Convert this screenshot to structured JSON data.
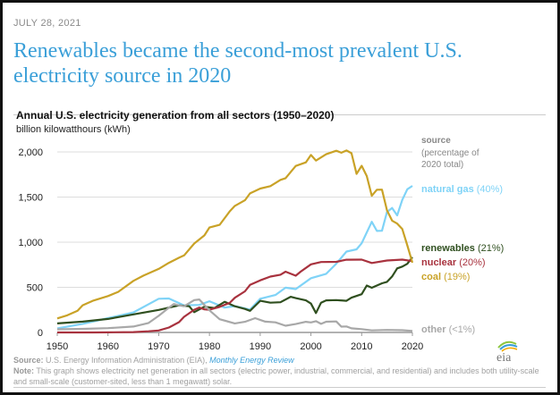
{
  "date": "JULY 28, 2021",
  "headline": "Renewables became the second-most prevalent U.S. electricity source in 2020",
  "source_label": "Source:",
  "source_text": "U.S. Energy Information Administration (EIA),",
  "source_link": "Monthly Energy Review",
  "note_label": "Note:",
  "note_text": "This graph shows electricity net generation in all sectors (electric power, industrial, commercial, and residential) and includes both utility-scale and small-scale (customer-sited, less than 1 megawatt) solar.",
  "logo_text": "eia",
  "chart_data": {
    "type": "line",
    "title": "Annual U.S. electricity generation from all sectors (1950–2020)",
    "ylabel": "billion kilowatthours (kWh)",
    "xlim": [
      1950,
      2020
    ],
    "ylim": [
      0,
      2000
    ],
    "x_ticks": [
      "1950",
      "1960",
      "1970",
      "1980",
      "1990",
      "2000",
      "2010",
      "2020"
    ],
    "y_ticks": [
      "0",
      "500",
      "1,000",
      "1,500",
      "2,000"
    ],
    "grid": true,
    "legend_title": "source",
    "legend_subtitle": "(percentage of 2020 total)",
    "legend_placement": "right",
    "series": [
      {
        "name": "natural gas",
        "share": "(40%)",
        "color": "#7fd3f7",
        "points": [
          [
            1950,
            45
          ],
          [
            1955,
            95
          ],
          [
            1960,
            158
          ],
          [
            1965,
            222
          ],
          [
            1970,
            373
          ],
          [
            1972,
            376
          ],
          [
            1975,
            300
          ],
          [
            1978,
            305
          ],
          [
            1980,
            346
          ],
          [
            1983,
            275
          ],
          [
            1985,
            292
          ],
          [
            1988,
            253
          ],
          [
            1990,
            373
          ],
          [
            1993,
            415
          ],
          [
            1995,
            496
          ],
          [
            1997,
            480
          ],
          [
            2000,
            601
          ],
          [
            2003,
            650
          ],
          [
            2005,
            761
          ],
          [
            2007,
            896
          ],
          [
            2009,
            921
          ],
          [
            2010,
            988
          ],
          [
            2012,
            1226
          ],
          [
            2013,
            1125
          ],
          [
            2014,
            1127
          ],
          [
            2015,
            1335
          ],
          [
            2016,
            1379
          ],
          [
            2017,
            1297
          ],
          [
            2018,
            1469
          ],
          [
            2019,
            1586
          ],
          [
            2020,
            1624
          ]
        ]
      },
      {
        "name": "renewables",
        "share": "(21%)",
        "color": "#2f4f1f",
        "points": [
          [
            1950,
            100
          ],
          [
            1955,
            120
          ],
          [
            1960,
            150
          ],
          [
            1965,
            200
          ],
          [
            1970,
            250
          ],
          [
            1974,
            300
          ],
          [
            1976,
            290
          ],
          [
            1977,
            225
          ],
          [
            1979,
            285
          ],
          [
            1981,
            270
          ],
          [
            1983,
            340
          ],
          [
            1985,
            290
          ],
          [
            1987,
            260
          ],
          [
            1988,
            240
          ],
          [
            1990,
            350
          ],
          [
            1992,
            330
          ],
          [
            1994,
            335
          ],
          [
            1996,
            395
          ],
          [
            1997,
            380
          ],
          [
            1999,
            355
          ],
          [
            2000,
            320
          ],
          [
            2001,
            215
          ],
          [
            2002,
            330
          ],
          [
            2003,
            355
          ],
          [
            2005,
            358
          ],
          [
            2007,
            350
          ],
          [
            2008,
            385
          ],
          [
            2010,
            424
          ],
          [
            2011,
            520
          ],
          [
            2012,
            495
          ],
          [
            2014,
            545
          ],
          [
            2015,
            560
          ],
          [
            2016,
            620
          ],
          [
            2017,
            710
          ],
          [
            2018,
            730
          ],
          [
            2019,
            760
          ],
          [
            2020,
            834
          ]
        ]
      },
      {
        "name": "nuclear",
        "share": "(20%)",
        "color": "#a8323e",
        "points": [
          [
            1950,
            0
          ],
          [
            1957,
            0
          ],
          [
            1960,
            1
          ],
          [
            1965,
            4
          ],
          [
            1968,
            13
          ],
          [
            1970,
            22
          ],
          [
            1972,
            54
          ],
          [
            1974,
            114
          ],
          [
            1975,
            173
          ],
          [
            1977,
            251
          ],
          [
            1978,
            276
          ],
          [
            1979,
            255
          ],
          [
            1980,
            251
          ],
          [
            1982,
            283
          ],
          [
            1984,
            328
          ],
          [
            1985,
            384
          ],
          [
            1987,
            455
          ],
          [
            1988,
            527
          ],
          [
            1990,
            577
          ],
          [
            1992,
            619
          ],
          [
            1994,
            640
          ],
          [
            1995,
            673
          ],
          [
            1997,
            629
          ],
          [
            1998,
            674
          ],
          [
            2000,
            754
          ],
          [
            2002,
            780
          ],
          [
            2005,
            782
          ],
          [
            2007,
            806
          ],
          [
            2010,
            807
          ],
          [
            2012,
            769
          ],
          [
            2015,
            797
          ],
          [
            2018,
            807
          ],
          [
            2020,
            790
          ]
        ]
      },
      {
        "name": "coal",
        "share": "(19%)",
        "color": "#c9a227",
        "points": [
          [
            1950,
            155
          ],
          [
            1952,
            190
          ],
          [
            1954,
            240
          ],
          [
            1955,
            301
          ],
          [
            1957,
            350
          ],
          [
            1960,
            403
          ],
          [
            1962,
            450
          ],
          [
            1965,
            571
          ],
          [
            1967,
            630
          ],
          [
            1970,
            704
          ],
          [
            1972,
            771
          ],
          [
            1974,
            828
          ],
          [
            1975,
            853
          ],
          [
            1977,
            985
          ],
          [
            1979,
            1075
          ],
          [
            1980,
            1162
          ],
          [
            1982,
            1192
          ],
          [
            1984,
            1342
          ],
          [
            1985,
            1402
          ],
          [
            1987,
            1464
          ],
          [
            1988,
            1541
          ],
          [
            1990,
            1594
          ],
          [
            1992,
            1621
          ],
          [
            1994,
            1690
          ],
          [
            1995,
            1709
          ],
          [
            1997,
            1845
          ],
          [
            1999,
            1884
          ],
          [
            2000,
            1966
          ],
          [
            2001,
            1904
          ],
          [
            2003,
            1974
          ],
          [
            2005,
            2013
          ],
          [
            2006,
            1991
          ],
          [
            2007,
            2016
          ],
          [
            2008,
            1986
          ],
          [
            2009,
            1756
          ],
          [
            2010,
            1847
          ],
          [
            2011,
            1733
          ],
          [
            2012,
            1514
          ],
          [
            2013,
            1581
          ],
          [
            2014,
            1582
          ],
          [
            2015,
            1352
          ],
          [
            2016,
            1239
          ],
          [
            2017,
            1206
          ],
          [
            2018,
            1146
          ],
          [
            2019,
            965
          ],
          [
            2020,
            773
          ]
        ]
      },
      {
        "name": "other",
        "share": "(<1%)",
        "color": "#a8a8a8",
        "points": [
          [
            1950,
            35
          ],
          [
            1955,
            40
          ],
          [
            1960,
            48
          ],
          [
            1965,
            65
          ],
          [
            1968,
            105
          ],
          [
            1970,
            184
          ],
          [
            1972,
            274
          ],
          [
            1973,
            315
          ],
          [
            1974,
            300
          ],
          [
            1975,
            290
          ],
          [
            1977,
            358
          ],
          [
            1978,
            365
          ],
          [
            1980,
            246
          ],
          [
            1982,
            147
          ],
          [
            1985,
            100
          ],
          [
            1987,
            118
          ],
          [
            1989,
            158
          ],
          [
            1991,
            120
          ],
          [
            1993,
            112
          ],
          [
            1995,
            74
          ],
          [
            1997,
            93
          ],
          [
            1999,
            118
          ],
          [
            2000,
            111
          ],
          [
            2001,
            125
          ],
          [
            2002,
            95
          ],
          [
            2003,
            119
          ],
          [
            2005,
            122
          ],
          [
            2006,
            64
          ],
          [
            2007,
            66
          ],
          [
            2008,
            46
          ],
          [
            2010,
            37
          ],
          [
            2012,
            23
          ],
          [
            2015,
            28
          ],
          [
            2018,
            25
          ],
          [
            2020,
            17
          ]
        ]
      }
    ]
  }
}
